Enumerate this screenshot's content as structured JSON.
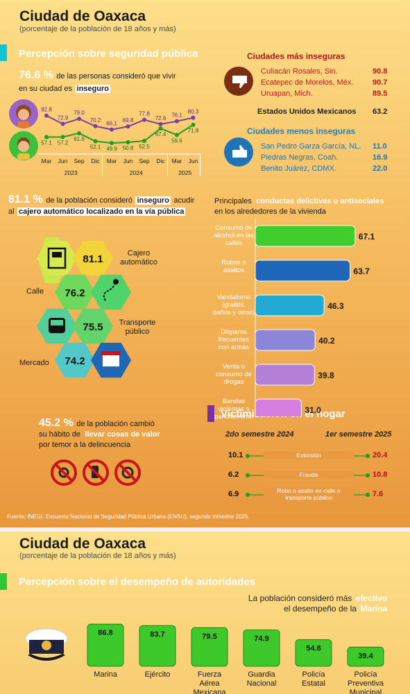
{
  "panel1": {
    "title": "Ciudad de Oaxaca",
    "subtitle": "(porcentaje de la población de 18 años y más)",
    "section_security": "Percepción sobre seguridad pública",
    "insecurity_pct": "76.6 %",
    "insecurity_text_a": "de las personas consideró que vivir",
    "insecurity_text_b": "en su ciudad es",
    "insecurity_word": "inseguro",
    "most_insecure_title": "Ciudades más inseguras",
    "most_insecure": [
      {
        "city": "Culiacán Rosales, Sin.",
        "value": "90.8"
      },
      {
        "city": "Ecatepec de Morelos, Méx.",
        "value": "90.7"
      },
      {
        "city": "Uruapan, Mich.",
        "value": "89.5"
      }
    ],
    "national_label": "Estados Unidos Mexicanos",
    "national_value": "63.2",
    "least_insecure_title": "Ciudades menos inseguras",
    "least_insecure": [
      {
        "city": "San Pedro Garza García, NL.",
        "value": "11.0"
      },
      {
        "city": "Piedras Negras, Coah.",
        "value": "16.9"
      },
      {
        "city": "Benito Juárez, CDMX.",
        "value": "22.0"
      }
    ],
    "atm_pct": "81.1  %",
    "atm_text_a": "de la población consideró",
    "atm_word": "inseguro",
    "atm_text_b": "acudir",
    "atm_text_c": "al",
    "atm_highlight": "cajero automático localizado en la vía pública",
    "hex": [
      {
        "label": "Cajero automático",
        "value": "81.1"
      },
      {
        "label": "Calle",
        "value": "76.2"
      },
      {
        "label": "Transporte público",
        "value": "75.5"
      },
      {
        "label": "Mercado",
        "value": "74.2"
      }
    ],
    "conduct_title_a": "Principales",
    "conduct_title_hl": "conductas delictivas o antisociales",
    "conduct_title_b": "en los alrededores de la vivienda",
    "habit_pct": "45.2 %",
    "habit_text_a": "de la población cambió",
    "habit_text_b": "su hábito de",
    "habit_hl": "llevar cosas de valor",
    "habit_text_c": "por temor a la delincuencia",
    "section_victim": "Victimización en el hogar",
    "victim_col_a": "2do semestre 2024",
    "victim_col_b": "1er semestre 2025",
    "victim": [
      {
        "label": "Extorsión",
        "a": "10.1",
        "b": "20.4"
      },
      {
        "label": "Fraude",
        "a": "6.2",
        "b": "10.8"
      },
      {
        "label": "Robo o asalto en calle o transporte público",
        "a": "6.9",
        "b": "7.6"
      }
    ],
    "source_a": "Fuente:",
    "source_b": "INEGI. Encuesta Nacional de Seguridad Pública Urbana (ENSU), segundo trimestre 2025."
  },
  "panel2": {
    "title": "Ciudad de Oaxaca",
    "subtitle": "(porcentaje de la población de 18 años y más)",
    "section_authorities": "Percepción sobre el desempeño de autoridades",
    "effective_a": "La población consideró más",
    "effective_hl": "efectivo",
    "effective_b": "el desempeño de la",
    "effective_hl2": "Marina"
  },
  "chart_data": [
    {
      "type": "line",
      "x_months": [
        "Mar",
        "Jun",
        "Sep",
        "Dic",
        "Mar",
        "Jun",
        "Sep",
        "Dic",
        "Mar",
        "Jun"
      ],
      "x_years": [
        "2023",
        "2024",
        "2025"
      ],
      "series": [
        {
          "values": [
            82.8,
            72.9,
            79.0,
            70.2,
            66.1,
            69.8,
            77.8,
            72.6,
            76.1,
            80.3
          ],
          "color": "#7a3fa5"
        },
        {
          "values": [
            57.1,
            57.2,
            61.6,
            52.1,
            49.9,
            50.8,
            52.5,
            67.4,
            59.6,
            71.8
          ],
          "color": "#1e9e1e"
        }
      ],
      "ylim": [
        40,
        90
      ]
    },
    {
      "type": "bar",
      "orientation": "horizontal",
      "categories": [
        "Consumo de alcohol en las calles",
        "Robos o asaltos",
        "Vandalismo (grafitis, daños y otros)",
        "Disparos frecuentes con armas",
        "Venta o consumo de drogas",
        "Bandas violentas o pandillerismo"
      ],
      "values": [
        67.1,
        63.7,
        46.3,
        40.2,
        39.8,
        31.0
      ],
      "colors": [
        "#3fcf2c",
        "#1e67b8",
        "#22a9d6",
        "#8a86d8",
        "#b47fd6",
        "#d77fe0"
      ],
      "xlim": [
        0,
        70
      ]
    },
    {
      "type": "bar",
      "categories": [
        "Marina",
        "Ejército",
        "Fuerza Aérea Mexicana",
        "Guardia Nacional",
        "Policía Estatal",
        "Policía Preventiva Municipal"
      ],
      "values": [
        86.8,
        83.7,
        79.5,
        74.9,
        54.8,
        39.4
      ],
      "color": "#3ec92a",
      "ylim": [
        0,
        100
      ]
    }
  ],
  "colors": {
    "accent_orange": "#e8952c",
    "title_red": "#b5131b",
    "title_blue": "#1f7fc4",
    "purple_line": "#7a3fa5",
    "green_line": "#1e9e1e"
  }
}
